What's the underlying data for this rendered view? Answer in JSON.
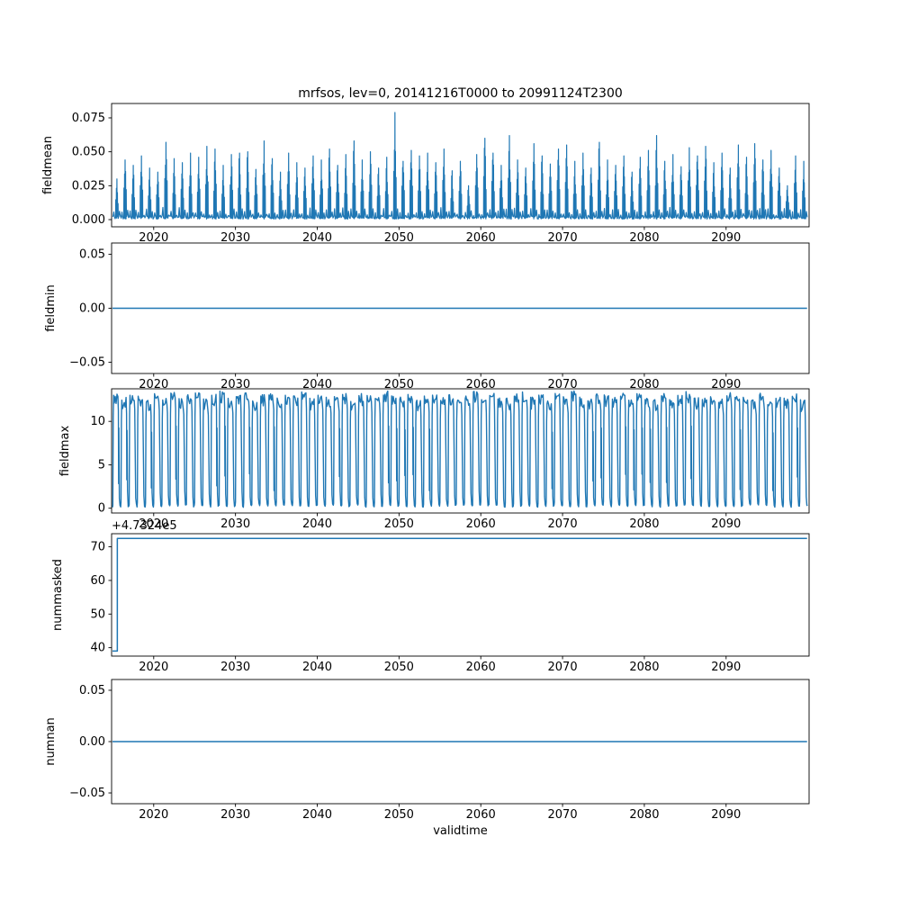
{
  "figure": {
    "title": "mrfsos, lev=0, 20141216T0000 to 20991124T2300",
    "xlabel": "validtime",
    "line_color": "#1f77b4",
    "background": "#ffffff",
    "x": {
      "lim": [
        2014.85,
        2100.15
      ],
      "data_range": [
        2014.96,
        2099.9
      ],
      "ticks": [
        2020,
        2030,
        2040,
        2050,
        2060,
        2070,
        2080,
        2090
      ],
      "tick_labels": [
        "2020",
        "2030",
        "2040",
        "2050",
        "2060",
        "2070",
        "2080",
        "2090"
      ]
    }
  },
  "chart_data": [
    {
      "name": "fieldmean",
      "type": "line",
      "pattern": "annual_spikes",
      "ylabel": "fieldmean",
      "ylim": [
        -0.0053,
        0.0856
      ],
      "yticks": [
        0.0,
        0.025,
        0.05,
        0.075
      ],
      "ytick_labels": [
        "0.000",
        "0.025",
        "0.050",
        "0.075"
      ],
      "baseline": 0.001,
      "start_year": 2015,
      "annual_peaks": [
        0.03,
        0.044,
        0.04,
        0.047,
        0.038,
        0.035,
        0.057,
        0.045,
        0.042,
        0.049,
        0.046,
        0.054,
        0.052,
        0.04,
        0.048,
        0.049,
        0.05,
        0.037,
        0.058,
        0.045,
        0.035,
        0.049,
        0.042,
        0.038,
        0.047,
        0.044,
        0.052,
        0.04,
        0.048,
        0.058,
        0.044,
        0.05,
        0.038,
        0.046,
        0.079,
        0.043,
        0.051,
        0.047,
        0.049,
        0.042,
        0.052,
        0.036,
        0.043,
        0.025,
        0.048,
        0.06,
        0.049,
        0.04,
        0.062,
        0.044,
        0.038,
        0.056,
        0.047,
        0.041,
        0.052,
        0.055,
        0.043,
        0.049,
        0.038,
        0.057,
        0.044,
        0.04,
        0.047,
        0.035,
        0.046,
        0.051,
        0.062,
        0.043,
        0.048,
        0.039,
        0.053,
        0.047,
        0.054,
        0.042,
        0.049,
        0.038,
        0.055,
        0.046,
        0.056,
        0.044,
        0.051,
        0.038,
        0.025,
        0.047,
        0.043
      ]
    },
    {
      "name": "fieldmin",
      "type": "line",
      "pattern": "constant",
      "ylabel": "fieldmin",
      "ylim": [
        -0.0605,
        0.0605
      ],
      "yticks": [
        -0.05,
        0.0,
        0.05
      ],
      "ytick_labels": [
        "−0.05",
        "0.00",
        "0.05"
      ],
      "value": 0.0
    },
    {
      "name": "fieldmax",
      "type": "line",
      "pattern": "annual_square_wave",
      "ylabel": "fieldmax",
      "ylim": [
        -0.55,
        13.75
      ],
      "yticks": [
        0,
        5,
        10
      ],
      "ytick_labels": [
        "0",
        "5",
        "10"
      ],
      "low": 0.1,
      "start_year": 2015,
      "annual_maxima": [
        13.2,
        12.8,
        13.4,
        13.0,
        12.5,
        13.3,
        12.9,
        13.5,
        12.7,
        13.1,
        13.4,
        12.6,
        13.2,
        13.5,
        12.9,
        13.0,
        13.3,
        12.4,
        13.1,
        13.4,
        12.8,
        13.2,
        13.0,
        13.5,
        12.7,
        13.3,
        12.9,
        13.1,
        13.4,
        12.6,
        13.2,
        13.0,
        12.8,
        13.5,
        13.1,
        12.9,
        13.3,
        12.5,
        13.0,
        13.4,
        12.8,
        13.2,
        12.6,
        13.1,
        13.5,
        12.9,
        13.3,
        13.0,
        12.7,
        13.2,
        13.4,
        12.8,
        13.1,
        12.5,
        13.3,
        12.9,
        13.5,
        13.0,
        12.6,
        13.2,
        13.1,
        12.8,
        13.4,
        12.9,
        13.2,
        13.0,
        12.5,
        13.3,
        12.7,
        13.1,
        13.5,
        12.8,
        13.0,
        13.2,
        12.6,
        13.4,
        12.9,
        13.1,
        12.7,
        13.3,
        12.4,
        13.0,
        12.8,
        13.2,
        12.5
      ]
    },
    {
      "name": "nummasked",
      "type": "line",
      "pattern": "step",
      "ylabel": "nummasked",
      "ylim": [
        37.5,
        73.9
      ],
      "yticks": [
        40,
        50,
        60,
        70
      ],
      "ytick_labels": [
        "40",
        "50",
        "60",
        "70"
      ],
      "offset_text": "+4.7324e5",
      "points": [
        [
          2014.96,
          39.0
        ],
        [
          2015.55,
          39.0
        ],
        [
          2015.55,
          72.5
        ],
        [
          2099.9,
          72.5
        ]
      ]
    },
    {
      "name": "numnan",
      "type": "line",
      "pattern": "constant",
      "ylabel": "numnan",
      "ylim": [
        -0.0605,
        0.0605
      ],
      "yticks": [
        -0.05,
        0.0,
        0.05
      ],
      "ytick_labels": [
        "−0.05",
        "0.00",
        "0.05"
      ],
      "value": 0.0
    }
  ]
}
